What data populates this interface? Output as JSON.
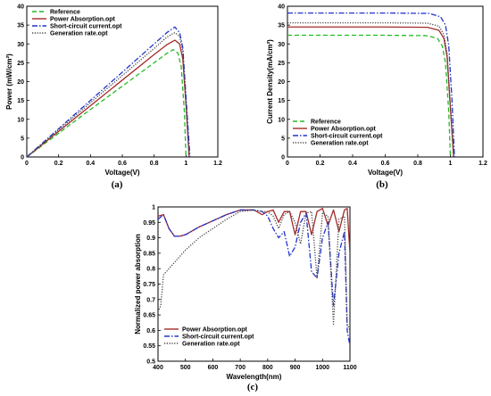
{
  "chart_data": [
    {
      "type": "line",
      "caption": "(a)",
      "xlabel": "Voltage(V)",
      "ylabel": "Power (mW/cm²)",
      "xlim": [
        0,
        1.2
      ],
      "ylim": [
        0,
        40
      ],
      "xticks": [
        "0",
        "0.2",
        "0.4",
        "0.6",
        "0.8",
        "1",
        "1.2"
      ],
      "yticks": [
        "0",
        "5",
        "10",
        "15",
        "20",
        "25",
        "30",
        "35",
        "40"
      ],
      "legend": "top-left",
      "series": [
        {
          "name": "Reference",
          "color": "#22bb22",
          "dash": "dashed",
          "x": [
            0,
            0.2,
            0.4,
            0.6,
            0.8,
            0.88,
            0.92,
            0.95,
            0.97,
            0.99,
            1.0
          ],
          "y": [
            0,
            6.3,
            12.6,
            18.8,
            25.0,
            27.5,
            28.5,
            27.5,
            24.0,
            12.0,
            0
          ]
        },
        {
          "name": "Power Absorption.opt",
          "color": "#a52a2a",
          "dash": "solid",
          "x": [
            0,
            0.2,
            0.4,
            0.6,
            0.8,
            0.88,
            0.93,
            0.96,
            0.98,
            1.0,
            1.02
          ],
          "y": [
            0,
            6.8,
            13.6,
            20.4,
            27.2,
            29.8,
            31.0,
            30.0,
            26.0,
            14.0,
            0
          ]
        },
        {
          "name": "Short-circuit current.opt",
          "color": "#2233cc",
          "dash": "dashdot",
          "x": [
            0,
            0.2,
            0.4,
            0.6,
            0.8,
            0.88,
            0.93,
            0.96,
            0.98,
            1.0,
            1.025
          ],
          "y": [
            0,
            7.5,
            15.0,
            22.5,
            30.0,
            33.0,
            34.5,
            33.0,
            29.0,
            16.0,
            0
          ]
        },
        {
          "name": "Generation rate.opt",
          "color": "#444444",
          "dash": "dotted",
          "x": [
            0,
            0.2,
            0.4,
            0.6,
            0.8,
            0.88,
            0.93,
            0.96,
            0.98,
            1.0,
            1.02
          ],
          "y": [
            0,
            7.2,
            14.4,
            21.6,
            28.8,
            31.8,
            33.0,
            32.0,
            28.0,
            15.0,
            0
          ]
        }
      ]
    },
    {
      "type": "line",
      "caption": "(b)",
      "xlabel": "Voltage(V)",
      "ylabel": "Current Density(mA/cm²)",
      "xlim": [
        0,
        1.2
      ],
      "ylim": [
        0,
        40
      ],
      "xticks": [
        "0",
        "0.2",
        "0.4",
        "0.6",
        "0.8",
        "1",
        "1.2"
      ],
      "yticks": [
        "0",
        "5",
        "10",
        "15",
        "20",
        "25",
        "30",
        "35",
        "40"
      ],
      "legend": "bottom-left",
      "series": [
        {
          "name": "Reference",
          "color": "#22bb22",
          "dash": "dashed",
          "x": [
            0,
            0.6,
            0.85,
            0.92,
            0.95,
            0.97,
            0.99,
            1.0
          ],
          "y": [
            32.3,
            32.3,
            32.2,
            31.5,
            29.5,
            25.0,
            12.0,
            0
          ]
        },
        {
          "name": "Power Absorption.opt",
          "color": "#a52a2a",
          "dash": "solid",
          "x": [
            0,
            0.6,
            0.86,
            0.93,
            0.96,
            0.98,
            1.0,
            1.02
          ],
          "y": [
            34.5,
            34.5,
            34.4,
            33.6,
            31.5,
            26.5,
            13.0,
            0
          ]
        },
        {
          "name": "Short-circuit current.opt",
          "color": "#2233cc",
          "dash": "dashdot",
          "x": [
            0,
            0.6,
            0.87,
            0.94,
            0.97,
            0.99,
            1.01,
            1.025
          ],
          "y": [
            38.2,
            38.2,
            38.1,
            37.2,
            35.0,
            29.5,
            15.0,
            0
          ]
        },
        {
          "name": "Generation rate.opt",
          "color": "#444444",
          "dash": "dotted",
          "x": [
            0,
            0.6,
            0.86,
            0.93,
            0.96,
            0.98,
            1.0,
            1.02
          ],
          "y": [
            35.6,
            35.6,
            35.5,
            34.7,
            32.5,
            27.5,
            14.0,
            0
          ]
        }
      ]
    },
    {
      "type": "line",
      "caption": "(c)",
      "xlabel": "Wavelength(nm)",
      "ylabel": "Normalized power absorption",
      "xlim": [
        400,
        1100
      ],
      "ylim": [
        0.5,
        1.0
      ],
      "xticks": [
        "400",
        "500",
        "600",
        "700",
        "800",
        "900",
        "1000",
        "1100"
      ],
      "yticks": [
        "0.5",
        "0.55",
        "0.6",
        "0.65",
        "0.7",
        "0.75",
        "0.8",
        "0.85",
        "0.9",
        "0.95",
        "1"
      ],
      "legend": "bottom-left",
      "series": [
        {
          "name": "Power Absorption.opt",
          "color": "#a52a2a",
          "dash": "solid",
          "x": [
            400,
            420,
            440,
            460,
            480,
            500,
            550,
            600,
            650,
            700,
            750,
            780,
            800,
            820,
            840,
            860,
            880,
            900,
            920,
            940,
            960,
            980,
            1000,
            1020,
            1040,
            1060,
            1080,
            1090,
            1100
          ],
          "y": [
            0.97,
            0.975,
            0.93,
            0.905,
            0.905,
            0.91,
            0.935,
            0.955,
            0.975,
            0.99,
            0.99,
            0.975,
            0.985,
            0.99,
            0.95,
            0.985,
            0.985,
            0.91,
            0.985,
            0.985,
            0.91,
            0.985,
            0.995,
            0.94,
            0.99,
            0.92,
            0.99,
            0.995,
            0.85
          ]
        },
        {
          "name": "Short-circuit current.opt",
          "color": "#2233cc",
          "dash": "dashdot",
          "x": [
            400,
            420,
            440,
            460,
            480,
            500,
            550,
            600,
            650,
            700,
            750,
            780,
            800,
            820,
            840,
            860,
            880,
            900,
            920,
            940,
            960,
            980,
            1000,
            1020,
            1040,
            1060,
            1080,
            1090,
            1100
          ],
          "y": [
            0.96,
            0.975,
            0.93,
            0.905,
            0.905,
            0.91,
            0.935,
            0.955,
            0.975,
            0.99,
            0.99,
            0.985,
            0.97,
            0.93,
            0.9,
            0.92,
            0.84,
            0.87,
            0.95,
            0.98,
            0.79,
            0.77,
            0.9,
            0.95,
            0.68,
            0.85,
            0.92,
            0.6,
            0.55
          ]
        },
        {
          "name": "Generation rate.opt",
          "color": "#444444",
          "dash": "dotted",
          "x": [
            400,
            410,
            420,
            440,
            460,
            480,
            500,
            550,
            600,
            650,
            700,
            750,
            780,
            800,
            820,
            840,
            860,
            880,
            900,
            920,
            940,
            960,
            980,
            1000,
            1020,
            1040,
            1060,
            1080,
            1090,
            1100
          ],
          "y": [
            0.66,
            0.68,
            0.78,
            0.8,
            0.82,
            0.84,
            0.86,
            0.9,
            0.93,
            0.96,
            0.985,
            0.99,
            0.985,
            0.985,
            0.97,
            0.93,
            0.975,
            0.985,
            0.95,
            0.88,
            0.98,
            0.985,
            0.77,
            0.98,
            0.97,
            0.62,
            0.96,
            0.97,
            0.62,
            0.6
          ]
        }
      ]
    }
  ]
}
